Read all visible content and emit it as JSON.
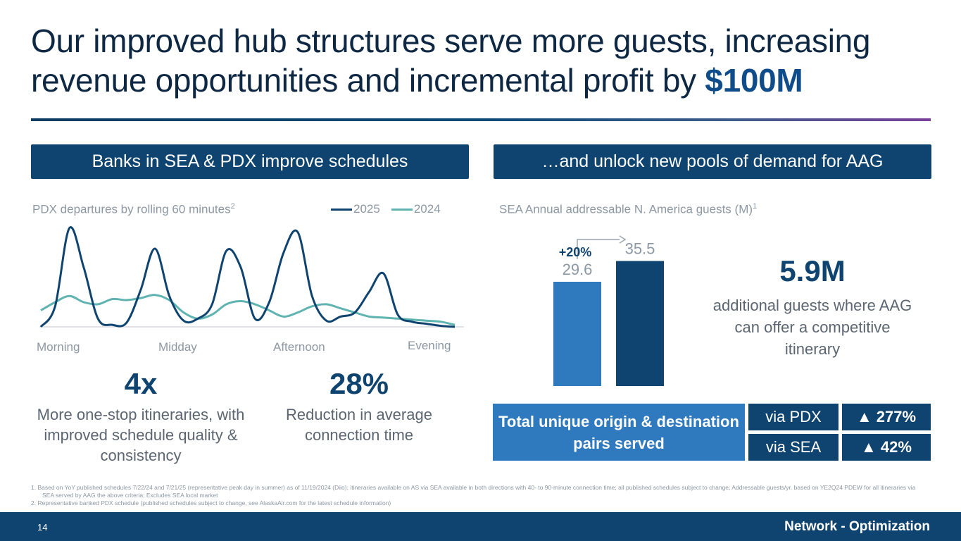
{
  "title": {
    "main": "Our improved hub structures serve more guests, increasing revenue opportunities and incremental profit by",
    "highlight": "$100M"
  },
  "left_panel": {
    "banner": "Banks in SEA & PDX improve schedules",
    "chart_title": "PDX departures by rolling 60 minutes",
    "chart_title_sup": "2",
    "legend": [
      {
        "label": "2025",
        "color": "#0f4470"
      },
      {
        "label": "2024",
        "color": "#5fb3b0"
      }
    ],
    "axis_labels": [
      "Morning",
      "Midday",
      "Afternoon",
      "Evening"
    ],
    "stats": [
      {
        "value": "4x",
        "desc": "More one-stop itineraries, with improved schedule quality & consistency"
      },
      {
        "value": "28%",
        "desc": "Reduction in average connection time"
      }
    ]
  },
  "right_panel": {
    "banner": "…and unlock new pools of demand for AAG",
    "chart_title": "SEA Annual addressable N. America guests (M)",
    "chart_title_sup": "1",
    "change_label": "+20%",
    "guests_value": "5.9M",
    "guests_desc": "additional guests where AAG can offer a competitive itinerary",
    "od_label": "Total unique origin & destination pairs served",
    "od_rows": [
      {
        "label": "via PDX",
        "value": "▲ 277%"
      },
      {
        "label": "via SEA",
        "value": "▲ 42%"
      }
    ]
  },
  "chart_data": [
    {
      "type": "line",
      "title": "PDX departures by rolling 60 minutes",
      "series": [
        {
          "name": "2025",
          "color": "#0f4470",
          "values": [
            0,
            20,
            96,
            58,
            8,
            2,
            4,
            36,
            76,
            30,
            6,
            8,
            22,
            74,
            58,
            8,
            24,
            72,
            92,
            30,
            6,
            10,
            14,
            34,
            52,
            12,
            5,
            3,
            1,
            0
          ]
        },
        {
          "name": "2024",
          "color": "#5fb3b0",
          "values": [
            16,
            24,
            30,
            24,
            22,
            27,
            26,
            28,
            31,
            26,
            14,
            8,
            12,
            22,
            25,
            22,
            16,
            10,
            14,
            20,
            22,
            18,
            14,
            10,
            9,
            8,
            7,
            6,
            5,
            2
          ]
        }
      ],
      "x_labels": [
        "Morning",
        "Midday",
        "Afternoon",
        "Evening"
      ],
      "ylim": [
        0,
        100
      ]
    },
    {
      "type": "bar",
      "title": "SEA Annual addressable N. America guests (M)",
      "categories": [
        "",
        ""
      ],
      "values": [
        29.6,
        35.5
      ],
      "data_labels": [
        "29.6",
        "35.5"
      ],
      "colors": [
        "#2f79bf",
        "#0f4470"
      ],
      "ylim": [
        0,
        40
      ]
    }
  ],
  "footnotes": [
    "1. Based on YoY published schedules 7/22/24 and 7/21/25 (representative peak day in summer) as of 11/19/2024 (Diio); itineraries available on AS via SEA available in both directions with 40- to 90-minute connection time; all published schedules subject to change; Addressable guests/yr. based on YE2Q24 PDEW for all itineraries via SEA served by AAG the above criteria; Excludes SEA local market",
    "2. Representative banked PDX schedule (published schedules subject to change, see AlaskaAir.com for the latest schedule information)"
  ],
  "footer": {
    "page_number": "14",
    "section": "Network - Optimization"
  }
}
